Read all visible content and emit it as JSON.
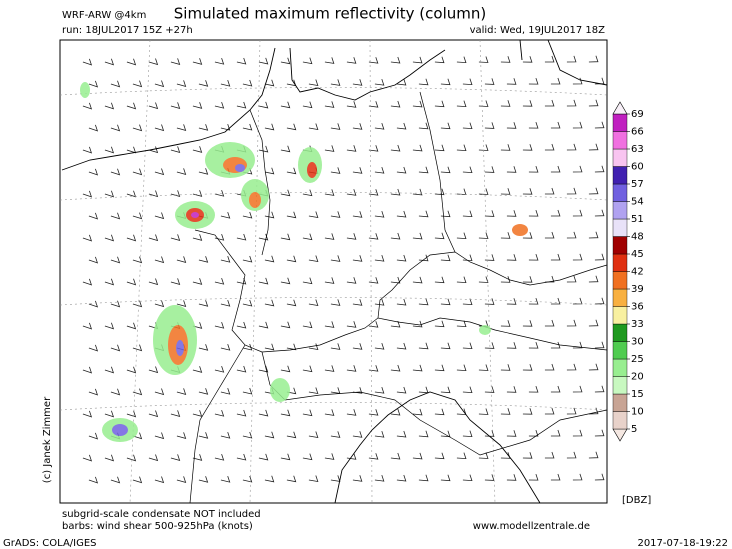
{
  "header": {
    "model": "WRF-ARW @4km",
    "title": "Simulated maximum reflectivity (column)",
    "run": "run: 18JUL2017 15Z +27h",
    "valid": "valid: Wed, 19JUL2017 18Z"
  },
  "colorbar": {
    "unit": "[DBZ]",
    "levels": [
      5,
      10,
      15,
      20,
      25,
      30,
      33,
      36,
      39,
      42,
      45,
      48,
      51,
      54,
      57,
      60,
      63,
      66,
      69
    ],
    "colors": [
      "#f5e8e2",
      "#e8d2ca",
      "#c8a494",
      "#c8f8c0",
      "#98ee90",
      "#50cc50",
      "#1f9a1f",
      "#f8f0a0",
      "#f8b040",
      "#f07020",
      "#e03010",
      "#a00000",
      "#e8e2f8",
      "#b0a2f0",
      "#7060e0",
      "#4020b0",
      "#f8c4f0",
      "#f070e0",
      "#c020c0",
      "#f8f0f8"
    ]
  },
  "notes": [
    "subgrid-scale condensate NOT included",
    "barbs: wind shear 500-925hPa (knots)"
  ],
  "website": "www.modellzentrale.de",
  "credit": "(c) Janek Zimmer",
  "footer": {
    "software": "GrADS: COLA/IGES",
    "timestamp": "2017-07-18-19:22"
  }
}
